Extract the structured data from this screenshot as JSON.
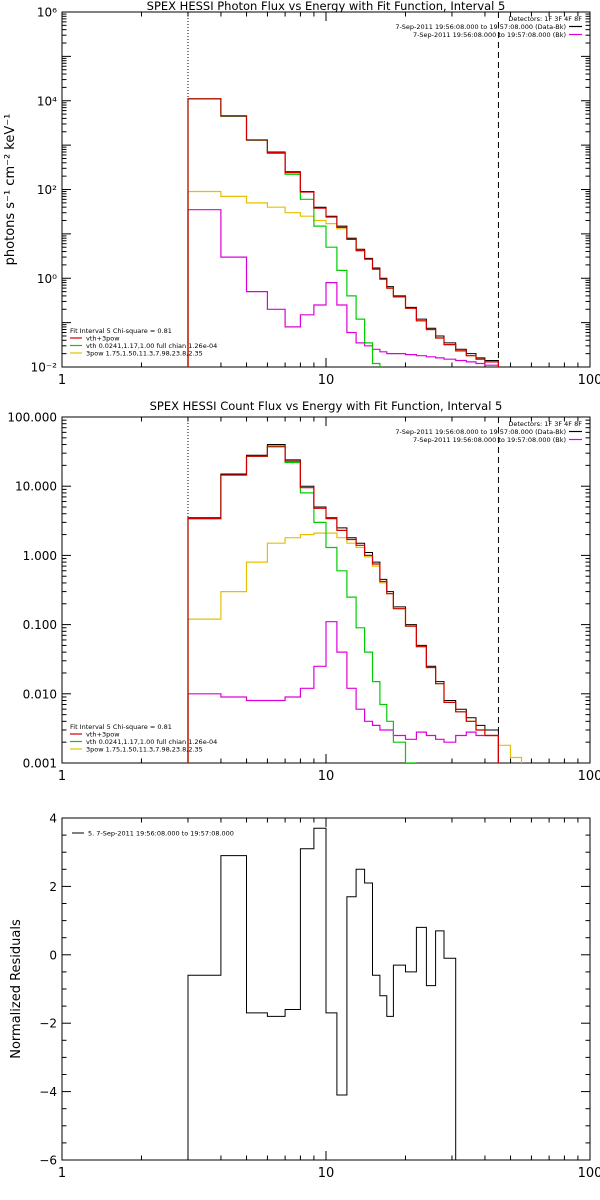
{
  "colors": {
    "background": "#ffffff",
    "axis": "#000000",
    "data": "#000000",
    "total_model": "#d00000",
    "vth": "#00cc00",
    "powerlaw": "#e6c000",
    "background_series": "#dd00dd"
  },
  "chart_data": [
    {
      "type": "line",
      "title": "SPEX HESSI Photon Flux vs Energy with Fit Function, Interval 5",
      "ylabel": "photons s⁻¹ cm⁻² keV⁻¹",
      "xlabel": "",
      "xscale": "log",
      "yscale": "log",
      "xlim": [
        1,
        100
      ],
      "ylim": [
        0.01,
        1000000
      ],
      "xticks": [
        {
          "v": 1,
          "label": "1"
        },
        {
          "v": 10,
          "label": "10"
        },
        {
          "v": 100,
          "label": "100"
        }
      ],
      "yticks": [
        {
          "v": 0.01,
          "label": "10⁻²"
        },
        {
          "v": 1,
          "label": "10⁰"
        },
        {
          "v": 100,
          "label": "10²"
        },
        {
          "v": 10000,
          "label": "10⁴"
        },
        {
          "v": 1000000,
          "label": "10⁶"
        }
      ],
      "vlines": [
        {
          "x": 3,
          "style": "dotted"
        },
        {
          "x": 45,
          "style": "dashed"
        }
      ],
      "legend_top": {
        "heading": "Detectors: 1F 3F 4F 8F",
        "entries": [
          {
            "label": "7-Sep-2011 19:56:08.000 to 19:57:08.000 (Data-Bk)",
            "color_key": "data"
          },
          {
            "label": "7-Sep-2011 19:56:08.000 to 19:57:08.000 (Bk)",
            "color_key": "background_series"
          }
        ]
      },
      "legend_bottom": {
        "heading": "Fit Interval 5   Chi-square = 0.81",
        "entries": [
          {
            "label": "vth+3pow",
            "color_key": "total_model"
          },
          {
            "label": "vth 0.0241,1.17,1.00  full chian 1.26e-04",
            "color_key": "vth"
          },
          {
            "label": "3pow 1.75,1.50,11.3,7.98,23.8,2.35",
            "color_key": "powerlaw"
          }
        ]
      },
      "bin_edges": [
        3,
        4,
        5,
        6,
        7,
        8,
        9,
        10,
        11,
        12,
        13,
        14,
        15,
        16,
        17,
        18,
        20,
        22,
        24,
        26,
        28,
        31,
        34,
        37,
        40,
        45
      ],
      "series": [
        {
          "key": "data",
          "values": [
            11000,
            4500,
            1300,
            700,
            250,
            90,
            40,
            25,
            15,
            8,
            4.5,
            2.8,
            1.7,
            1,
            0.65,
            0.4,
            0.22,
            0.12,
            0.075,
            0.05,
            0.035,
            0.025,
            0.02,
            0.016,
            0.014
          ]
        },
        {
          "key": "total_model",
          "values": [
            11000,
            4600,
            1320,
            680,
            240,
            88,
            38,
            24,
            14,
            7.5,
            4.2,
            2.7,
            1.6,
            0.95,
            0.6,
            0.38,
            0.21,
            0.11,
            0.07,
            0.045,
            0.032,
            0.023,
            0.018,
            0.015,
            0.013
          ]
        },
        {
          "key": "vth",
          "values": [
            11000,
            4500,
            1300,
            650,
            220,
            60,
            15,
            5,
            1.5,
            0.4,
            0.12,
            0.035,
            0.012,
            0.005
          ]
        },
        {
          "key": "powerlaw",
          "values": [
            90,
            70,
            50,
            40,
            30,
            25,
            20,
            17,
            13,
            8,
            4.2,
            2.7,
            1.6,
            0.95,
            0.6,
            0.38,
            0.21,
            0.11,
            0.07,
            0.045,
            0.032,
            0.023,
            0.018,
            0.015,
            0.013
          ]
        },
        {
          "key": "background_series",
          "values": [
            35,
            3,
            0.5,
            0.2,
            0.08,
            0.15,
            0.25,
            0.8,
            0.25,
            0.06,
            0.035,
            0.03,
            0.025,
            0.022,
            0.02,
            0.02,
            0.019,
            0.018,
            0.017,
            0.016,
            0.015,
            0.014,
            0.013,
            0.012,
            0.011
          ]
        }
      ]
    },
    {
      "type": "line",
      "title": "SPEX HESSI Count Flux vs Energy with Fit Function, Interval 5",
      "ylabel": "",
      "xlabel": "",
      "xscale": "log",
      "yscale": "log",
      "xlim": [
        1,
        100
      ],
      "ylim": [
        0.001,
        100
      ],
      "xticks": [
        {
          "v": 1,
          "label": "1"
        },
        {
          "v": 10,
          "label": "10"
        },
        {
          "v": 100,
          "label": "100"
        }
      ],
      "yticks": [
        {
          "v": 0.001,
          "label": "0.001"
        },
        {
          "v": 0.01,
          "label": "0.010"
        },
        {
          "v": 0.1,
          "label": "0.100"
        },
        {
          "v": 1,
          "label": "1.000"
        },
        {
          "v": 10,
          "label": "10.000"
        },
        {
          "v": 100,
          "label": "100.000"
        }
      ],
      "vlines": [
        {
          "x": 3,
          "style": "dotted"
        },
        {
          "x": 45,
          "style": "dashed"
        }
      ],
      "legend_top": {
        "heading": "Detectors: 1F 3F 4F 8F",
        "entries": [
          {
            "label": "7-Sep-2011 19:56:08.000 to 19:57:08.000 (Data-Bk)",
            "color_key": "data"
          },
          {
            "label": "7-Sep-2011 19:56:08.000 to 19:57:08.000 (Bk)",
            "color_key": "background_series"
          }
        ]
      },
      "legend_bottom": {
        "heading": "Fit Interval 5   Chi-square = 0.81",
        "entries": [
          {
            "label": "vth+3pow",
            "color_key": "total_model"
          },
          {
            "label": "vth 0.0241,1.17,1.00  full chian 1.26e-04",
            "color_key": "vth"
          },
          {
            "label": "3pow 1.75,1.50,11.3,7.98,23.8,2.35",
            "color_key": "powerlaw"
          }
        ]
      },
      "bin_edges": [
        3,
        4,
        5,
        6,
        7,
        8,
        9,
        10,
        11,
        12,
        13,
        14,
        15,
        16,
        17,
        18,
        20,
        22,
        24,
        26,
        28,
        31,
        34,
        37,
        40,
        45,
        50,
        55,
        60
      ],
      "series": [
        {
          "key": "data",
          "values": [
            3.5,
            15,
            28,
            40,
            24,
            10,
            5,
            3.5,
            2.5,
            1.8,
            1.5,
            1.1,
            0.8,
            0.45,
            0.3,
            0.18,
            0.1,
            0.05,
            0.025,
            0.015,
            0.008,
            0.006,
            0.0045,
            0.0035,
            0.003
          ]
        },
        {
          "key": "total_model",
          "values": [
            3.4,
            14.5,
            27,
            38,
            23,
            9.5,
            4.8,
            3.4,
            2.3,
            1.7,
            1.4,
            1.0,
            0.75,
            0.42,
            0.28,
            0.17,
            0.095,
            0.048,
            0.024,
            0.014,
            0.0075,
            0.0055,
            0.004,
            0.003,
            0.0025
          ]
        },
        {
          "key": "vth",
          "values": [
            3.4,
            14.5,
            27,
            37,
            22,
            8,
            3,
            1.3,
            0.6,
            0.25,
            0.09,
            0.04,
            0.015,
            0.007,
            0.004,
            0.002,
            0.001
          ]
        },
        {
          "key": "powerlaw",
          "values": [
            0.12,
            0.3,
            0.8,
            1.5,
            1.8,
            2.0,
            2.1,
            2.1,
            1.8,
            1.5,
            1.3,
            0.95,
            0.7,
            0.4,
            0.28,
            0.17,
            0.095,
            0.048,
            0.024,
            0.014,
            0.0075,
            0.0055,
            0.004,
            0.003,
            0.0025,
            0.0018,
            0.0012,
            0.0009
          ]
        },
        {
          "key": "background_series",
          "values": [
            0.01,
            0.009,
            0.008,
            0.008,
            0.009,
            0.012,
            0.025,
            0.11,
            0.04,
            0.012,
            0.006,
            0.004,
            0.0035,
            0.003,
            0.003,
            0.0025,
            0.0022,
            0.0028,
            0.0025,
            0.0022,
            0.002,
            0.0025,
            0.0028,
            0.0025,
            0.0025
          ]
        }
      ]
    },
    {
      "type": "line",
      "title": "",
      "ylabel": "Normalized Residuals",
      "xlabel": "",
      "xscale": "log",
      "yscale": "linear",
      "xlim": [
        1,
        100
      ],
      "ylim": [
        -6,
        4
      ],
      "xticks": [
        {
          "v": 1,
          "label": "1"
        },
        {
          "v": 10,
          "label": "10"
        },
        {
          "v": 100,
          "label": "100"
        }
      ],
      "yticks": [
        {
          "v": -6,
          "label": "−6"
        },
        {
          "v": -4,
          "label": "−4"
        },
        {
          "v": -2,
          "label": "−2"
        },
        {
          "v": 0,
          "label": "0"
        },
        {
          "v": 2,
          "label": "2"
        },
        {
          "v": 4,
          "label": "4"
        }
      ],
      "legend_top": {
        "heading": "",
        "entries": [
          {
            "label": "5.  7-Sep-2011 19:56:08.000 to 19:57:08.000",
            "color_key": "data"
          }
        ]
      },
      "bin_edges": [
        3,
        4,
        5,
        6,
        7,
        8,
        9,
        10,
        11,
        12,
        13,
        14,
        15,
        16,
        17,
        18,
        20,
        22,
        24,
        26,
        28,
        31,
        34,
        37,
        40,
        45
      ],
      "series": [
        {
          "key": "data",
          "values": [
            -0.6,
            2.9,
            -1.7,
            -1.8,
            -1.6,
            3.1,
            3.7,
            -1.7,
            -4.1,
            1.7,
            2.5,
            2.1,
            -0.6,
            -1.2,
            -1.8,
            -0.3,
            -0.5,
            0.8,
            -0.9,
            0.7,
            -0.1
          ]
        }
      ]
    }
  ]
}
